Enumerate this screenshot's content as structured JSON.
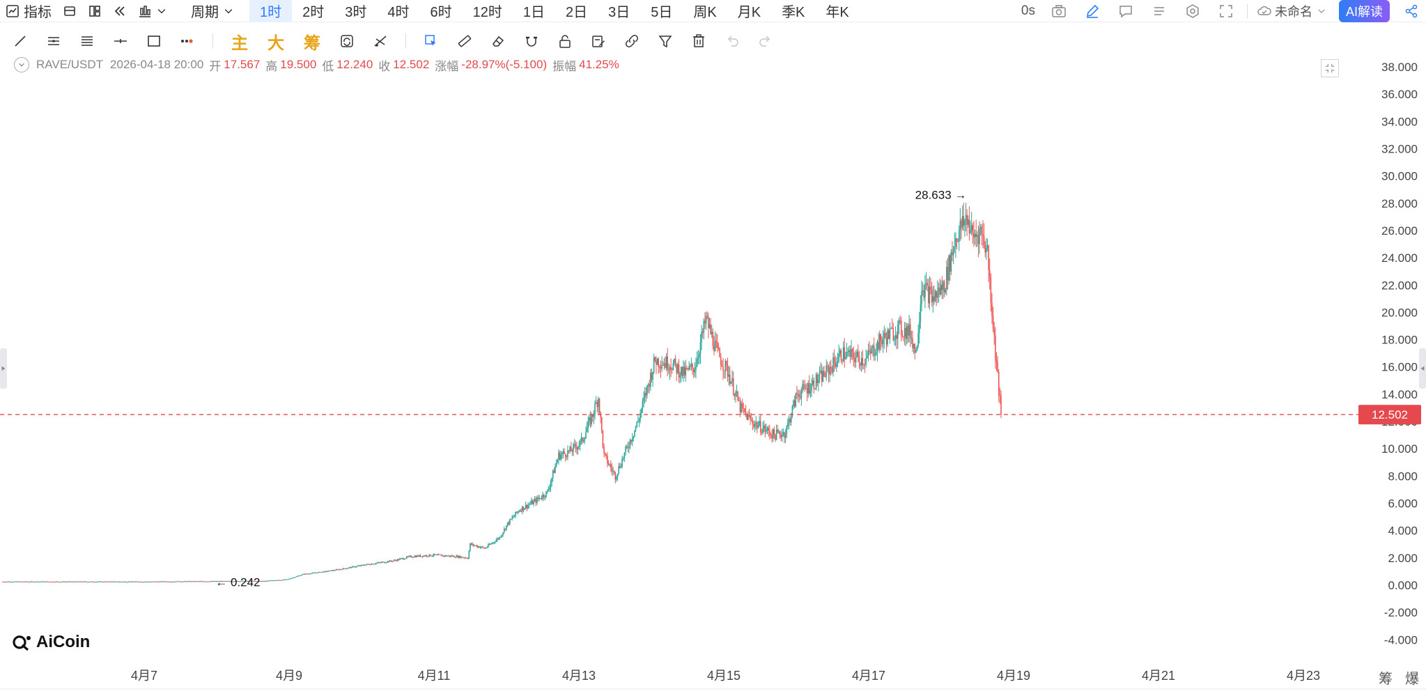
{
  "topbar": {
    "indicator_label": "指标",
    "period_label": "周期",
    "periods": [
      "1时",
      "2时",
      "3时",
      "4时",
      "6时",
      "12时",
      "1日",
      "2日",
      "3日",
      "5日",
      "周K",
      "月K",
      "季K",
      "年K"
    ],
    "active_period_index": 0,
    "timer_label": "0s",
    "layout_name": "未命名",
    "ai_label": "AI解读"
  },
  "drawbar": {
    "text_tools": [
      "主",
      "大",
      "筹"
    ]
  },
  "legend": {
    "symbol": "RAVE/USDT",
    "datetime": "2026-04-18 20:00",
    "open_label": "开",
    "open": "17.567",
    "high_label": "高",
    "high": "19.500",
    "low_label": "低",
    "low": "12.240",
    "close_label": "收",
    "close": "12.502",
    "change_label": "涨幅",
    "change": "-28.97%(-5.100)",
    "amplitude_label": "振幅",
    "amplitude": "41.25%"
  },
  "logo": {
    "text": "AiCoin"
  },
  "bottom_right": {
    "chip_label": "筹",
    "blast_label": "爆"
  },
  "colors": {
    "up": "#26a69a",
    "down": "#ef5350",
    "accent": "#2f7df6",
    "price_line": "#e5484d"
  },
  "chart_data": {
    "type": "candlestick",
    "title": "RAVE/USDT",
    "ylim": [
      -5,
      39
    ],
    "y_ticks": [
      "38.000",
      "36.000",
      "34.000",
      "32.000",
      "30.000",
      "28.000",
      "26.000",
      "24.000",
      "22.000",
      "20.000",
      "18.000",
      "16.000",
      "14.000",
      "12.000",
      "10.000",
      "8.000",
      "6.000",
      "4.000",
      "2.000",
      "0.000",
      "-2.000",
      "-4.000"
    ],
    "x_ticks": [
      "4月7",
      "4月9",
      "4月11",
      "4月13",
      "4月15",
      "4月17",
      "4月19",
      "4月21",
      "4月23"
    ],
    "grid": false,
    "max_label": "28.633",
    "min_label": "0.242",
    "last_price": "12.502",
    "last_price_value": 12.502,
    "max_value": 28.633,
    "min_value": 0.242,
    "series_anchors": [
      [
        0,
        0.25
      ],
      [
        130,
        0.25
      ],
      [
        180,
        0.28
      ],
      [
        230,
        0.3
      ],
      [
        250,
        0.4
      ],
      [
        265,
        0.8
      ],
      [
        285,
        1.0
      ],
      [
        300,
        1.2
      ],
      [
        320,
        1.5
      ],
      [
        345,
        1.8
      ],
      [
        360,
        2.1
      ],
      [
        380,
        2.2
      ],
      [
        400,
        2.1
      ],
      [
        410,
        2.0
      ],
      [
        412,
        3.0
      ],
      [
        425,
        2.7
      ],
      [
        438,
        3.5
      ],
      [
        445,
        4.5
      ],
      [
        455,
        5.5
      ],
      [
        470,
        6.2
      ],
      [
        480,
        6.8
      ],
      [
        490,
        9.5
      ],
      [
        500,
        9.8
      ],
      [
        510,
        10.5
      ],
      [
        520,
        12.5
      ],
      [
        525,
        13.8
      ],
      [
        530,
        9.5
      ],
      [
        540,
        8.0
      ],
      [
        550,
        10.0
      ],
      [
        560,
        12.0
      ],
      [
        575,
        16.5
      ],
      [
        590,
        16.2
      ],
      [
        600,
        15.5
      ],
      [
        610,
        16.0
      ],
      [
        620,
        19.5
      ],
      [
        630,
        17.0
      ],
      [
        640,
        15.5
      ],
      [
        650,
        13.0
      ],
      [
        660,
        12.0
      ],
      [
        670,
        11.5
      ],
      [
        680,
        11.0
      ],
      [
        690,
        11.2
      ],
      [
        700,
        14.0
      ],
      [
        710,
        14.5
      ],
      [
        725,
        15.5
      ],
      [
        740,
        17.0
      ],
      [
        760,
        16.5
      ],
      [
        775,
        18.0
      ],
      [
        790,
        18.8
      ],
      [
        800,
        18.5
      ],
      [
        805,
        17.0
      ],
      [
        810,
        22.0
      ],
      [
        820,
        21.0
      ],
      [
        830,
        22.0
      ],
      [
        840,
        25.5
      ],
      [
        850,
        27.0
      ],
      [
        855,
        25.5
      ],
      [
        862,
        26.0
      ],
      [
        868,
        24.5
      ],
      [
        874,
        18.0
      ],
      [
        880,
        12.502
      ]
    ]
  }
}
